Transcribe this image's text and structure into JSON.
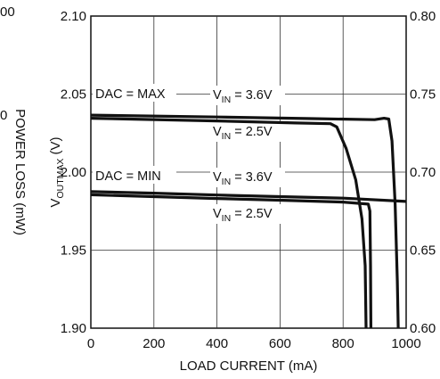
{
  "chart_data": {
    "type": "line",
    "title": "",
    "xlabel": "LOAD CURRENT (mA)",
    "ylabel_left": {
      "prefix": "V",
      "sub": "OUTMAX",
      "suffix": " (V)"
    },
    "ylabel_right": "POWER LOSS (mW)",
    "xlim": [
      0,
      1000
    ],
    "ylim_left": [
      1.9,
      2.1
    ],
    "ylim_right": [
      0.6,
      0.8
    ],
    "x_ticks": [
      "0",
      "200",
      "400",
      "600",
      "800",
      "1000"
    ],
    "y_ticks_left": [
      "1.90",
      "1.95",
      "2.00",
      "2.05",
      "2.10"
    ],
    "y_ticks_right": [
      "0.60",
      "0.65",
      "0.70",
      "0.75",
      "0.80"
    ],
    "grid": true,
    "annotations": {
      "dac_max": "DAC = MAX",
      "dac_min": "DAC = MIN",
      "vin_36_top": {
        "prefix": "V",
        "sub": "IN",
        "suffix": " = 3.6V"
      },
      "vin_25_top": {
        "prefix": "V",
        "sub": "IN",
        "suffix": " = 2.5V"
      },
      "vin_36_bot": {
        "prefix": "V",
        "sub": "IN",
        "suffix": " = 3.6V"
      },
      "vin_25_bot": {
        "prefix": "V",
        "sub": "IN",
        "suffix": " = 2.5V"
      }
    },
    "series": [
      {
        "group": "DAC = MAX",
        "vin": "3.6V",
        "points": [
          [
            0,
            2.0365
          ],
          [
            400,
            2.0353
          ],
          [
            700,
            2.0343
          ],
          [
            900,
            2.0336
          ],
          [
            930,
            2.0345
          ],
          [
            945,
            2.034
          ],
          [
            955,
            2.02
          ],
          [
            965,
            1.98
          ],
          [
            972,
            1.93
          ],
          [
            975,
            1.9
          ]
        ]
      },
      {
        "group": "DAC = MAX",
        "vin": "2.5V",
        "points": [
          [
            0,
            2.0345
          ],
          [
            400,
            2.0328
          ],
          [
            650,
            2.0315
          ],
          [
            760,
            2.031
          ],
          [
            780,
            2.029
          ],
          [
            810,
            2.015
          ],
          [
            840,
            1.995
          ],
          [
            860,
            1.97
          ],
          [
            870,
            1.94
          ],
          [
            873,
            1.9
          ]
        ]
      },
      {
        "group": "DAC = MIN",
        "vin": "3.6V",
        "points": [
          [
            0,
            1.9875
          ],
          [
            200,
            1.9865
          ],
          [
            400,
            1.9853
          ],
          [
            600,
            1.9843
          ],
          [
            800,
            1.9833
          ],
          [
            1000,
            1.9812
          ]
        ]
      },
      {
        "group": "DAC = MIN",
        "vin": "2.5V",
        "points": [
          [
            0,
            1.9855
          ],
          [
            200,
            1.9843
          ],
          [
            400,
            1.9831
          ],
          [
            600,
            1.982
          ],
          [
            800,
            1.9808
          ],
          [
            880,
            1.9795
          ],
          [
            885,
            1.975
          ],
          [
            887,
            1.94
          ],
          [
            888,
            1.9
          ]
        ]
      }
    ],
    "clipped_labels": {
      "top_left": "00",
      "left_mid": "0"
    }
  }
}
